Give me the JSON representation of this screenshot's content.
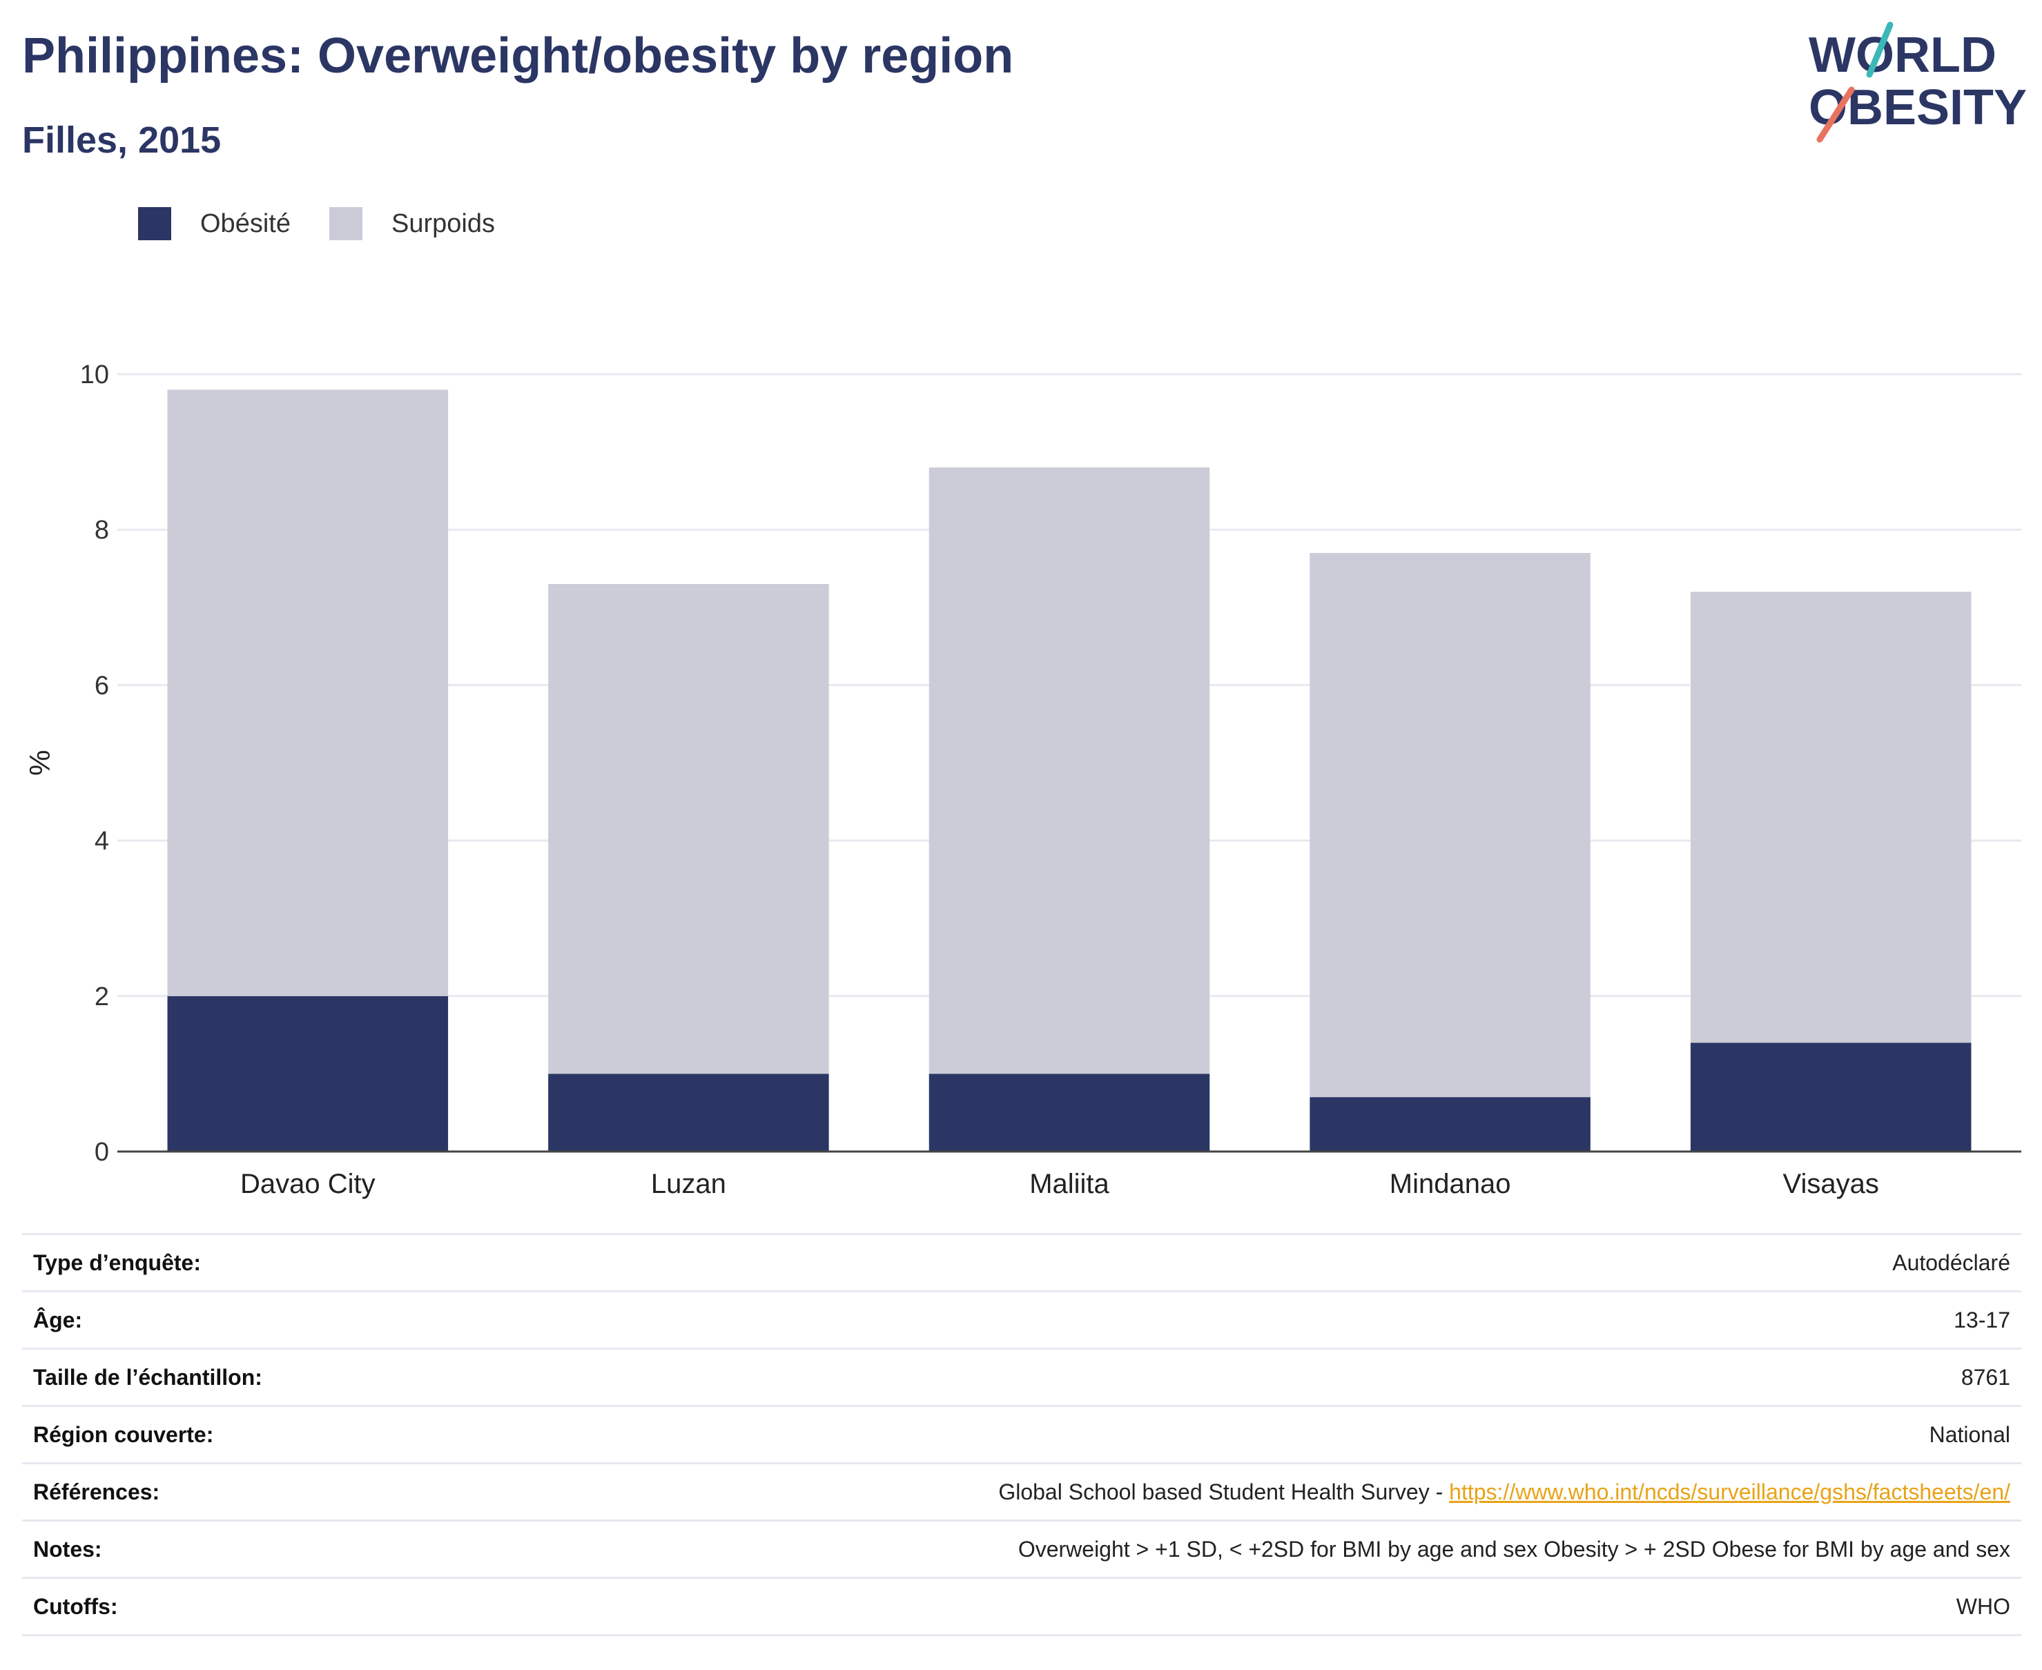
{
  "header": {
    "title": "Philippines: Overweight/obesity by region",
    "subtitle": "Filles, 2015"
  },
  "logo": {
    "line1": "WORLD",
    "line2": "OBESITY",
    "colors": {
      "text": "#2b3664",
      "accent_teal": "#3bb8b8",
      "accent_coral": "#e8735f"
    }
  },
  "legend": [
    {
      "label": "Obésité",
      "color": "#2b3664"
    },
    {
      "label": "Surpoids",
      "color": "#cbccd8"
    }
  ],
  "chart_data": {
    "type": "bar",
    "stacked": true,
    "categories": [
      "Davao City",
      "Luzan",
      "Maliita",
      "Mindanao",
      "Visayas"
    ],
    "series": [
      {
        "name": "Obésité",
        "color": "#2b3664",
        "values": [
          2.0,
          1.0,
          1.0,
          0.7,
          1.4
        ]
      },
      {
        "name": "Surpoids",
        "color": "#cbccd8",
        "values": [
          7.8,
          6.3,
          7.8,
          7.0,
          5.8
        ]
      }
    ],
    "ylabel": "%",
    "ylim": [
      0,
      10
    ],
    "yticks": [
      0,
      2,
      4,
      6,
      8,
      10
    ],
    "grid": true
  },
  "meta": [
    {
      "key": "Type d’enquête:",
      "value": "Autodéclaré"
    },
    {
      "key": "Âge:",
      "value": "13-17"
    },
    {
      "key": "Taille de l’échantillon:",
      "value": "8761"
    },
    {
      "key": "Région couverte:",
      "value": "National"
    },
    {
      "key": "Références:",
      "value": "Global School based Student Health Survey - ",
      "link": "https://www.who.int/ncds/surveillance/gshs/factsheets/en/"
    },
    {
      "key": "Notes:",
      "value": "Overweight > +1 SD, < +2SD for BMI by age and sex Obesity > + 2SD Obese for BMI by age and sex"
    },
    {
      "key": "Cutoffs:",
      "value": "WHO"
    }
  ]
}
